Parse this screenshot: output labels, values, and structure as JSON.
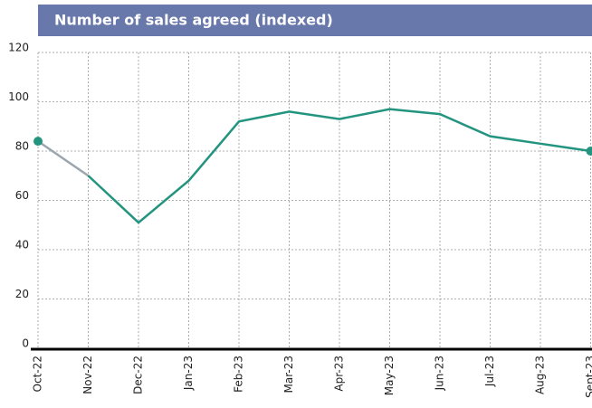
{
  "chart_data": {
    "type": "line",
    "title": "Number of sales agreed (indexed)",
    "categories": [
      "Oct-22",
      "Nov-22",
      "Dec-22",
      "Jan-23",
      "Feb-23",
      "Mar-23",
      "Apr-23",
      "May-23",
      "Jun-23",
      "Jul-23",
      "Aug-23",
      "Sept-23"
    ],
    "series": [
      {
        "color": "#9aa5ae",
        "values": [
          84,
          70,
          null,
          null,
          null,
          null,
          null,
          null,
          null,
          null,
          null,
          null
        ]
      },
      {
        "color": "#23947f",
        "values": [
          null,
          70,
          51,
          68,
          92,
          96,
          93,
          97,
          95,
          86,
          83,
          80
        ]
      }
    ],
    "marker_color": "#23947f",
    "ylim": [
      0,
      120
    ],
    "yticks": [
      0,
      20,
      40,
      60,
      80,
      100,
      120
    ],
    "grid": true
  }
}
